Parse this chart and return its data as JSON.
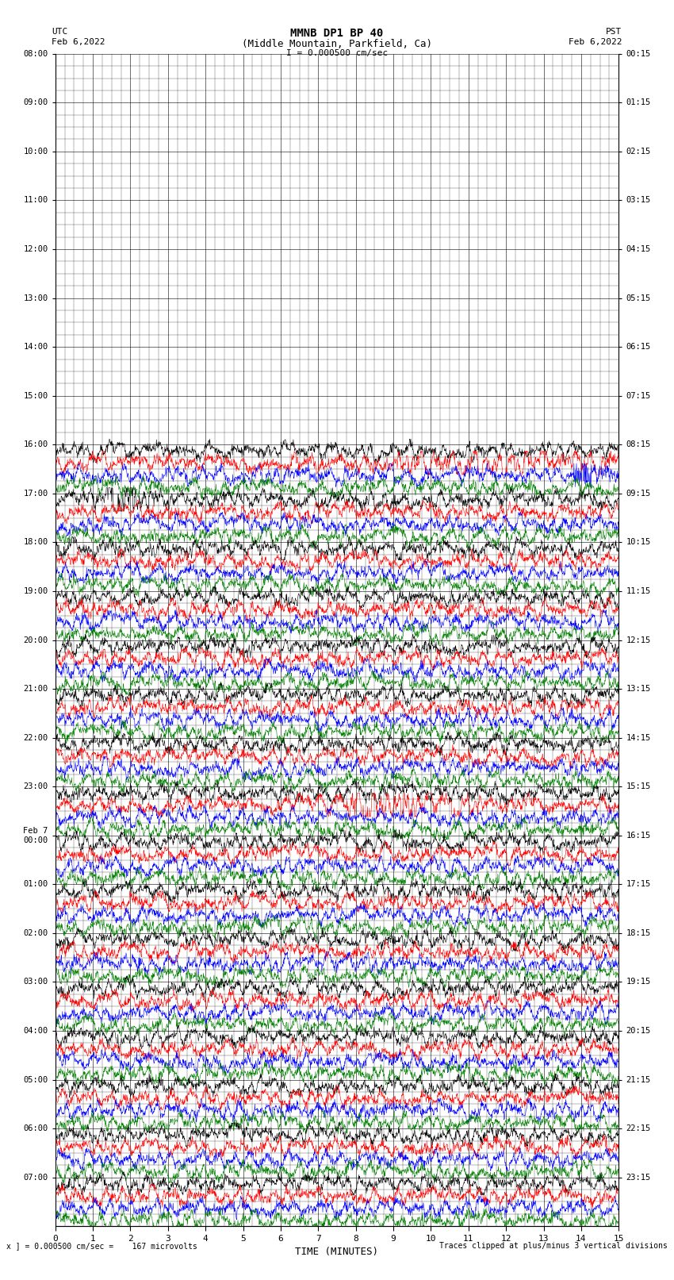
{
  "title_line1": "MMNB DP1 BP 40",
  "title_line2": "(Middle Mountain, Parkfield, Ca)",
  "scale_text": "I = 0.000500 cm/sec",
  "left_label": "UTC",
  "left_date": "Feb 6,2022",
  "right_label": "PST",
  "right_date": "Feb 6,2022",
  "xlabel": "TIME (MINUTES)",
  "footer_left": "x ] = 0.000500 cm/sec =    167 microvolts",
  "footer_right": "Traces clipped at plus/minus 3 vertical divisions",
  "utc_labels": [
    "08:00",
    "09:00",
    "10:00",
    "11:00",
    "12:00",
    "13:00",
    "14:00",
    "15:00",
    "16:00",
    "17:00",
    "18:00",
    "19:00",
    "20:00",
    "21:00",
    "22:00",
    "23:00",
    "Feb 7\n00:00",
    "01:00",
    "02:00",
    "03:00",
    "04:00",
    "05:00",
    "06:00",
    "07:00"
  ],
  "pst_labels": [
    "00:15",
    "01:15",
    "02:15",
    "03:15",
    "04:15",
    "05:15",
    "06:15",
    "07:15",
    "08:15",
    "09:15",
    "10:15",
    "11:15",
    "12:15",
    "13:15",
    "14:15",
    "15:15",
    "16:15",
    "17:15",
    "18:15",
    "19:15",
    "20:15",
    "21:15",
    "22:15",
    "23:15"
  ],
  "n_hours": 24,
  "empty_hours": 8,
  "active_hours": 16,
  "channel_colors_ordered": [
    "black",
    "red",
    "blue",
    "green"
  ],
  "xmin": 0,
  "xmax": 15,
  "background_color": "white",
  "text_color": "black",
  "minor_grid_divisions": 4,
  "seismic_event_row": 15,
  "seismic_event2_row": 16
}
